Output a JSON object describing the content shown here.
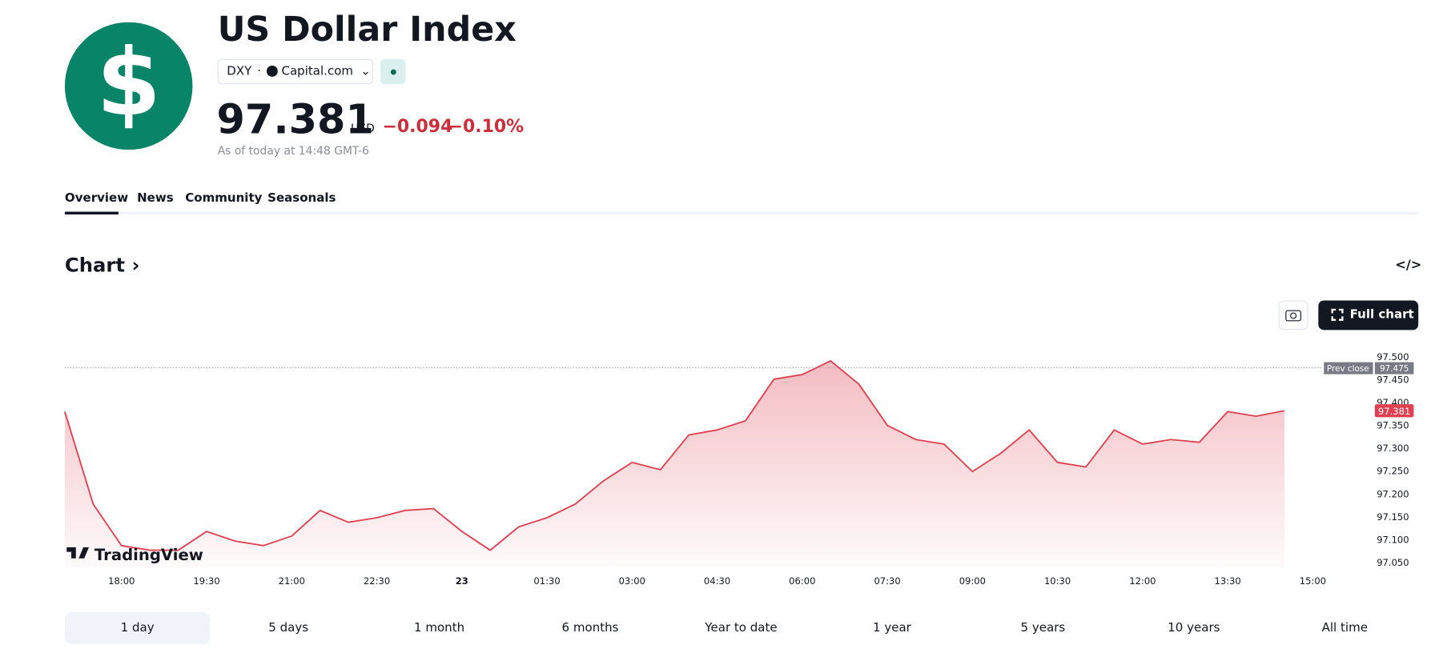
{
  "header": {
    "title": "US Dollar Index",
    "symbol": "DXY",
    "exchange": "Capital.com",
    "price": "97.381",
    "currency": "USD",
    "change": "−0.094",
    "change_percent": "−0.10%",
    "as_of": "As of today at 14:48 GMT-6"
  },
  "tabs": [
    "Overview",
    "News",
    "Community",
    "Seasonals"
  ],
  "section_title": "Chart",
  "full_chart_button": "Full chart",
  "ranges": [
    "1 day",
    "5 days",
    "1 month",
    "6 months",
    "Year to date",
    "1 year",
    "5 years",
    "10 years",
    "All time"
  ],
  "chart_data": {
    "type": "area",
    "color": "#e0404f",
    "watermark": "TradingView",
    "categories": [
      null,
      null,
      "18:00",
      null,
      null,
      "19:30",
      null,
      null,
      "21:00",
      null,
      null,
      "22:30",
      null,
      null,
      "23",
      null,
      null,
      "01:30",
      null,
      null,
      "03:00",
      null,
      null,
      "04:30",
      null,
      null,
      "06:00",
      null,
      null,
      "07:30",
      null,
      null,
      "09:00",
      null,
      null,
      "10:30",
      null,
      null,
      "12:00",
      null,
      null,
      "13:30",
      null,
      null,
      "15:00"
    ],
    "values": [
      97.379,
      97.177,
      97.086,
      97.076,
      97.076,
      97.117,
      97.096,
      97.086,
      97.107,
      97.163,
      97.137,
      97.147,
      97.163,
      97.167,
      97.117,
      97.076,
      97.127,
      97.147,
      97.177,
      97.228,
      97.268,
      97.252,
      97.328,
      97.339,
      97.359,
      97.45,
      97.46,
      97.49,
      97.439,
      97.349,
      97.318,
      97.308,
      97.248,
      97.288,
      97.339,
      97.268,
      97.258,
      97.339,
      97.308,
      97.318,
      97.312,
      97.379,
      97.369,
      97.381,
      null
    ],
    "ylim": [
      97.04,
      97.515
    ],
    "yticks": [
      {
        "value": 97.05,
        "label": "97.050"
      },
      {
        "value": 97.1,
        "label": "97.100"
      },
      {
        "value": 97.15,
        "label": "97.150"
      },
      {
        "value": 97.2,
        "label": "97.200"
      },
      {
        "value": 97.25,
        "label": "97.250"
      },
      {
        "value": 97.3,
        "label": "97.300"
      },
      {
        "value": 97.35,
        "label": "97.350"
      },
      {
        "value": 97.4,
        "label": "97.400"
      },
      {
        "value": 97.45,
        "label": "97.450"
      },
      {
        "value": 97.5,
        "label": "97.500"
      }
    ],
    "prev_close": {
      "label": "Prev close",
      "value": 97.475
    },
    "last_price": 97.381
  }
}
